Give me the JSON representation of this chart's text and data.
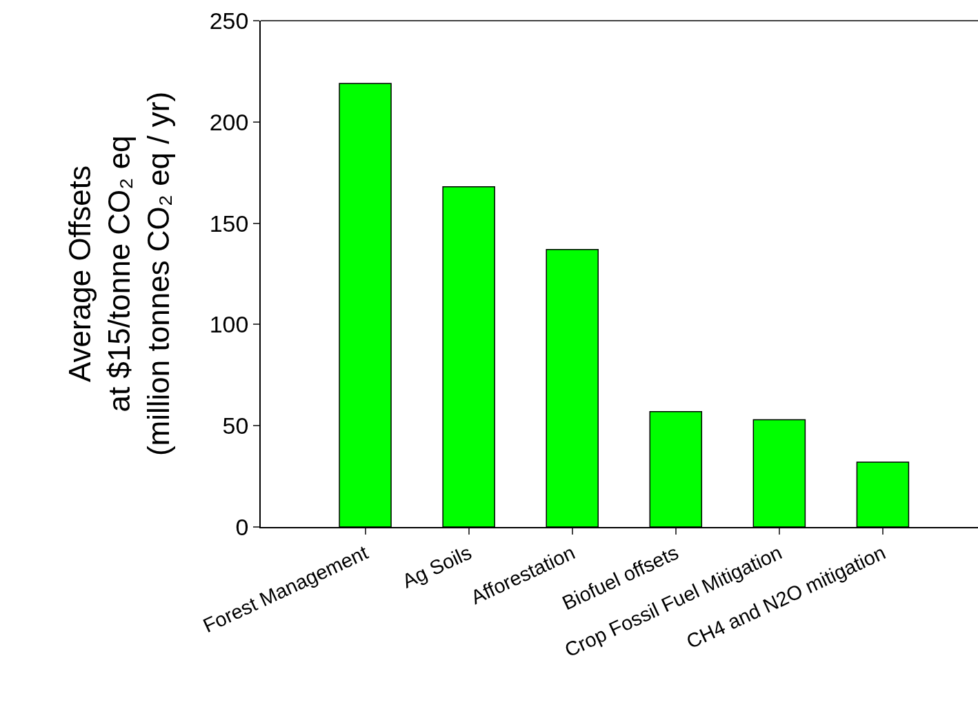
{
  "chart_data": {
    "type": "bar",
    "ylabel": "Average Offsets\nat $15/tonne CO₂ eq\n(million tonnes CO₂ eq / yr)",
    "categories": [
      "Forest Management",
      "Ag Soils",
      "Afforestation",
      "Biofuel offsets",
      "Crop Fossil Fuel Mitigation",
      "CH4 and N2O mitigation"
    ],
    "values": [
      219,
      168,
      137,
      57,
      53,
      32
    ],
    "color": "#00ff00",
    "ylim": [
      0,
      250
    ],
    "yticks": [
      0,
      50,
      100,
      150,
      200,
      250
    ],
    "grid": false
  }
}
